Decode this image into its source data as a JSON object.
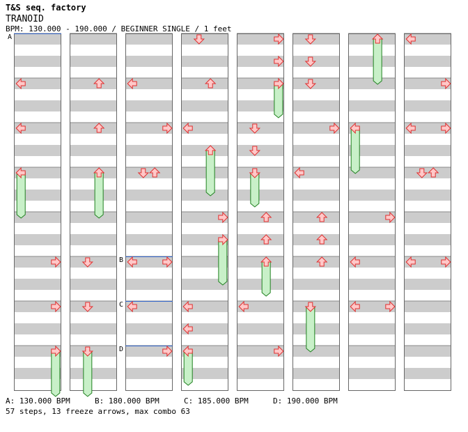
{
  "header": {
    "site_title": "T&S seq. factory",
    "song_title": "TRANOID",
    "info": "BPM: 130.000 - 190.000 / BEGINNER SINGLE / 1 feet"
  },
  "colors": {
    "arrow_fill": "#ffc8c8",
    "arrow_stroke": "#e03030",
    "freeze_fill": "#c8f0c8",
    "freeze_stroke": "#208020",
    "stripe": "#cccccc",
    "bpm_line": "#3366cc"
  },
  "bpm_markers": [
    {
      "label": "A",
      "measure": 0,
      "beat": 0
    },
    {
      "label": "B",
      "measure": 20,
      "beat": 0
    },
    {
      "label": "C",
      "measure": 22,
      "beat": 0
    },
    {
      "label": "D",
      "measure": 24,
      "beat": 0
    }
  ],
  "arrows": [
    {
      "m": 1,
      "b": 0,
      "d": "L"
    },
    {
      "m": 1,
      "b": 0,
      "d": "U",
      "hold": 4
    },
    {
      "m": 2,
      "b": 0,
      "d": "L"
    },
    {
      "m": 2,
      "b": 2,
      "d": "D",
      "hold": 4
    },
    {
      "m": 3,
      "b": 0,
      "d": "L"
    },
    {
      "m": 3,
      "b": 0,
      "d": "R",
      "hold": 2
    },
    {
      "m": 3,
      "b": 0,
      "d": "R"
    },
    {
      "m": 3,
      "b": 0,
      "d": "R"
    },
    {
      "m": 0,
      "b": 1,
      "d": "L"
    },
    {
      "m": 0,
      "b": 1,
      "d": "R"
    },
    {
      "m": 0,
      "b": 1,
      "d": "L"
    },
    {
      "m": 0,
      "b": 1,
      "d": "R"
    }
  ],
  "steps": [
    {
      "col": 3,
      "m": 0,
      "b": 0,
      "d": "D"
    },
    {
      "col": 4,
      "m": 0,
      "b": 0,
      "d": "R"
    },
    {
      "col": 4,
      "m": 0,
      "b": 2,
      "d": "R"
    },
    {
      "col": 5,
      "m": 0,
      "b": 0,
      "d": "D"
    },
    {
      "col": 5,
      "m": 0,
      "b": 2,
      "d": "D"
    },
    {
      "col": 6,
      "m": 0,
      "b": 0,
      "d": "U",
      "hold": 3.5
    },
    {
      "col": 7,
      "m": 0,
      "b": 0,
      "d": "L"
    },
    {
      "col": 0,
      "m": 1,
      "b": 0,
      "d": "L"
    },
    {
      "col": 1,
      "m": 1,
      "b": 0,
      "d": "U"
    },
    {
      "col": 2,
      "m": 1,
      "b": 0,
      "d": "L"
    },
    {
      "col": 3,
      "m": 1,
      "b": 0,
      "d": "U"
    },
    {
      "col": 4,
      "m": 1,
      "b": 0,
      "d": "R",
      "hold": 2.5
    },
    {
      "col": 5,
      "m": 1,
      "b": 0,
      "d": "D"
    },
    {
      "col": 7,
      "m": 1,
      "b": 0,
      "d": "R"
    },
    {
      "col": 0,
      "m": 2,
      "b": 0,
      "d": "L"
    },
    {
      "col": 1,
      "m": 2,
      "b": 0,
      "d": "U"
    },
    {
      "col": 2,
      "m": 2,
      "b": 0,
      "d": "R"
    },
    {
      "col": 3,
      "m": 2,
      "b": 0,
      "d": "L"
    },
    {
      "col": 3,
      "m": 2,
      "b": 2,
      "d": "U",
      "hold": 3.5
    },
    {
      "col": 4,
      "m": 2,
      "b": 0,
      "d": "D"
    },
    {
      "col": 4,
      "m": 2,
      "b": 2,
      "d": "D"
    },
    {
      "col": 5,
      "m": 2,
      "b": 0,
      "d": "R"
    },
    {
      "col": 6,
      "m": 2,
      "b": 0,
      "d": "L",
      "hold": 3.5
    },
    {
      "col": 7,
      "m": 2,
      "b": 0,
      "d": "L"
    },
    {
      "col": 7,
      "m": 2,
      "b": 0,
      "d": "R",
      "x2": true
    },
    {
      "col": 0,
      "m": 3,
      "b": 0,
      "d": "L",
      "hold": 3.5
    },
    {
      "col": 1,
      "m": 3,
      "b": 0,
      "d": "U",
      "hold": 3.5
    },
    {
      "col": 2,
      "m": 3,
      "b": 0,
      "d": "D"
    },
    {
      "col": 2,
      "m": 3,
      "b": 0,
      "d": "U",
      "x2": true
    },
    {
      "col": 4,
      "m": 3,
      "b": 0,
      "d": "D",
      "hold": 2.5
    },
    {
      "col": 5,
      "m": 3,
      "b": 0,
      "d": "L"
    },
    {
      "col": 7,
      "m": 3,
      "b": 0,
      "d": "D"
    },
    {
      "col": 7,
      "m": 3,
      "b": 0,
      "d": "U",
      "x2": true
    },
    {
      "col": 3,
      "m": 4,
      "b": 0,
      "d": "R"
    },
    {
      "col": 3,
      "m": 4,
      "b": 2,
      "d": "R",
      "hold": 3.5
    },
    {
      "col": 4,
      "m": 4,
      "b": 0,
      "d": "U"
    },
    {
      "col": 4,
      "m": 4,
      "b": 2,
      "d": "U"
    },
    {
      "col": 5,
      "m": 4,
      "b": 0,
      "d": "U"
    },
    {
      "col": 5,
      "m": 4,
      "b": 2,
      "d": "U"
    },
    {
      "col": 6,
      "m": 4,
      "b": 0,
      "d": "R"
    },
    {
      "col": 0,
      "m": 5,
      "b": 0,
      "d": "R"
    },
    {
      "col": 1,
      "m": 5,
      "b": 0,
      "d": "D"
    },
    {
      "col": 2,
      "m": 5,
      "b": 0,
      "d": "L"
    },
    {
      "col": 2,
      "m": 5,
      "b": 0,
      "d": "R",
      "x2": true
    },
    {
      "col": 4,
      "m": 5,
      "b": 0,
      "d": "U",
      "hold": 2.5
    },
    {
      "col": 5,
      "m": 5,
      "b": 0,
      "d": "U"
    },
    {
      "col": 6,
      "m": 5,
      "b": 0,
      "d": "L"
    },
    {
      "col": 7,
      "m": 5,
      "b": 0,
      "d": "L"
    },
    {
      "col": 7,
      "m": 5,
      "b": 0,
      "d": "R",
      "x2": true
    },
    {
      "col": 0,
      "m": 6,
      "b": 0,
      "d": "R"
    },
    {
      "col": 1,
      "m": 6,
      "b": 0,
      "d": "D"
    },
    {
      "col": 2,
      "m": 6,
      "b": 0,
      "d": "L"
    },
    {
      "col": 3,
      "m": 6,
      "b": 0,
      "d": "L"
    },
    {
      "col": 3,
      "m": 6,
      "b": 2,
      "d": "L"
    },
    {
      "col": 4,
      "m": 6,
      "b": 0,
      "d": "L"
    },
    {
      "col": 5,
      "m": 6,
      "b": 0,
      "d": "D",
      "hold": 3.5
    },
    {
      "col": 6,
      "m": 6,
      "b": 0,
      "d": "L"
    },
    {
      "col": 6,
      "m": 6,
      "b": 0,
      "d": "R",
      "x2": true
    },
    {
      "col": 0,
      "m": 7,
      "b": 0,
      "d": "R",
      "hold": 3.5
    },
    {
      "col": 1,
      "m": 7,
      "b": 0,
      "d": "D",
      "hold": 3.5
    },
    {
      "col": 2,
      "m": 7,
      "b": 0,
      "d": "R"
    },
    {
      "col": 3,
      "m": 7,
      "b": 0,
      "d": "L",
      "hold": 2.5
    },
    {
      "col": 4,
      "m": 7,
      "b": 0,
      "d": "R"
    }
  ],
  "bpm_labels_measure": [
    {
      "label": "A",
      "col": 0,
      "m": 0
    },
    {
      "label": "B",
      "col": 2,
      "m": 5
    },
    {
      "label": "C",
      "col": 2,
      "m": 6
    },
    {
      "label": "D",
      "col": 2,
      "m": 7
    }
  ],
  "footer": {
    "bpm_a": "A: 130.000 BPM",
    "bpm_b": "B: 180.000 BPM",
    "bpm_c": "C: 185.000 BPM",
    "bpm_d": "D: 190.000 BPM",
    "stats": "57 steps, 13 freeze arrows, max combo 63"
  }
}
